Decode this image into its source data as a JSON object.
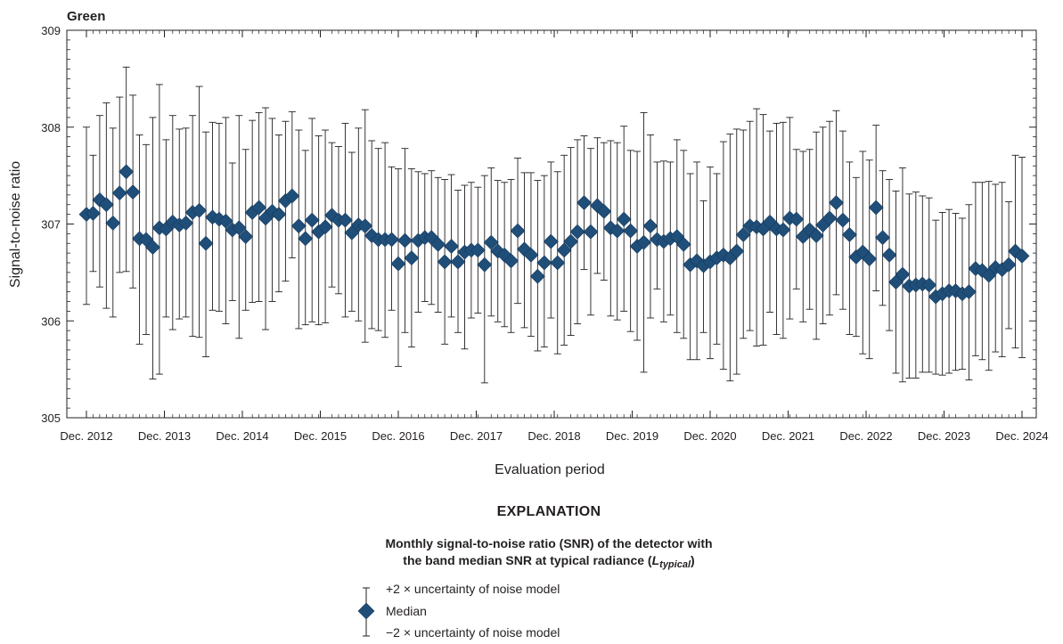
{
  "chart_data": {
    "type": "scatter",
    "title": "Green",
    "xlabel": "Evaluation period",
    "ylabel": "Signal-to-noise ratio",
    "ylim": [
      305,
      309
    ],
    "y_ticks": [
      305,
      306,
      307,
      308,
      309
    ],
    "x_tick_labels": [
      "Dec. 2012",
      "Dec. 2013",
      "Dec. 2014",
      "Dec. 2015",
      "Dec. 2016",
      "Dec. 2017",
      "Dec. 2018",
      "Dec. 2019",
      "Dec. 2020",
      "Dec. 2021",
      "Dec. 2022",
      "Dec. 2023",
      "Dec. 2024"
    ],
    "x_start_label": "Dec. 2012",
    "x_end_label": "Dec. 2024",
    "grid": false,
    "marker_color": "#1f4e79",
    "series": [
      {
        "name": "Median",
        "median": [
          307.1,
          307.11,
          307.25,
          307.2,
          307.01,
          307.32,
          307.54,
          307.33,
          306.85,
          306.84,
          306.76,
          306.96,
          306.95,
          307.02,
          306.99,
          307.01,
          307.12,
          307.14,
          306.8,
          307.07,
          307.05,
          307.03,
          306.94,
          306.96,
          306.87,
          307.12,
          307.17,
          307.06,
          307.13,
          307.1,
          307.24,
          307.29,
          306.98,
          306.85,
          307.04,
          306.92,
          306.97,
          307.09,
          307.04,
          307.04,
          306.91,
          306.99,
          306.98,
          306.88,
          306.84,
          306.84,
          306.84,
          306.59,
          306.83,
          306.65,
          306.83,
          306.86,
          306.86,
          306.79,
          306.61,
          306.77,
          306.61,
          306.71,
          306.73,
          306.73,
          306.58,
          306.81,
          306.72,
          306.68,
          306.62,
          306.93,
          306.74,
          306.68,
          306.46,
          306.6,
          306.82,
          306.6,
          306.73,
          306.82,
          306.92,
          307.22,
          306.92,
          307.19,
          307.13,
          306.96,
          306.93,
          307.05,
          306.93,
          306.77,
          306.81,
          306.98,
          306.84,
          306.82,
          306.85,
          306.87,
          306.79,
          306.58,
          306.62,
          306.57,
          306.61,
          306.65,
          306.68,
          306.65,
          306.72,
          306.89,
          306.98,
          306.97,
          306.95,
          307.02,
          306.95,
          306.94,
          307.06,
          307.05,
          306.87,
          306.94,
          306.88,
          306.99,
          307.06,
          307.22,
          307.04,
          306.89,
          306.66,
          306.71,
          306.64,
          307.17,
          306.86,
          306.68,
          306.4,
          306.48,
          306.36,
          306.37,
          306.38,
          306.37,
          306.25,
          306.28,
          306.31,
          306.31,
          306.28,
          306.3,
          306.54,
          306.52,
          306.47,
          306.55,
          306.53,
          306.58,
          306.72,
          306.67
        ],
        "upper": [
          308.0,
          307.71,
          308.12,
          308.25,
          307.99,
          308.31,
          308.62,
          308.33,
          307.92,
          307.82,
          308.1,
          308.44,
          307.87,
          308.12,
          307.98,
          307.99,
          308.12,
          308.42,
          307.95,
          308.05,
          308.04,
          308.1,
          307.63,
          308.12,
          307.77,
          308.07,
          308.15,
          308.2,
          308.09,
          307.92,
          308.06,
          308.16,
          307.97,
          307.76,
          308.09,
          307.91,
          307.97,
          307.84,
          307.8,
          308.04,
          307.74,
          307.99,
          308.18,
          307.86,
          307.78,
          307.84,
          307.59,
          307.57,
          307.78,
          307.57,
          307.54,
          307.52,
          307.55,
          307.48,
          307.46,
          307.51,
          307.35,
          307.4,
          307.43,
          307.38,
          307.5,
          307.58,
          307.45,
          307.43,
          307.46,
          307.68,
          307.53,
          307.53,
          307.45,
          307.5,
          307.64,
          307.54,
          307.71,
          307.79,
          307.87,
          307.91,
          307.78,
          307.89,
          307.84,
          307.86,
          307.84,
          308.01,
          307.76,
          307.75,
          308.15,
          307.92,
          307.64,
          307.65,
          307.64,
          307.87,
          307.76,
          307.52,
          307.64,
          307.24,
          307.59,
          307.52,
          307.85,
          307.93,
          307.98,
          307.97,
          308.06,
          308.19,
          308.13,
          307.96,
          308.04,
          308.05,
          308.1,
          307.77,
          307.75,
          307.77,
          307.95,
          308.0,
          308.06,
          308.17,
          307.96,
          307.64,
          307.48,
          307.75,
          307.66,
          308.02,
          307.55,
          307.46,
          307.34,
          307.58,
          307.31,
          307.33,
          307.29,
          307.27,
          307.04,
          307.12,
          307.15,
          307.11,
          307.06,
          307.2,
          307.43,
          307.43,
          307.44,
          307.41,
          307.43,
          307.23,
          307.71,
          307.69
        ],
        "lower": [
          306.17,
          306.51,
          306.35,
          306.13,
          306.04,
          306.5,
          306.51,
          306.34,
          305.76,
          305.86,
          305.4,
          305.45,
          306.04,
          305.91,
          306.02,
          306.04,
          305.84,
          305.83,
          305.63,
          306.11,
          306.1,
          305.97,
          306.21,
          305.82,
          306.11,
          306.19,
          306.2,
          305.91,
          306.2,
          306.3,
          306.41,
          306.65,
          305.92,
          305.96,
          305.99,
          305.96,
          305.98,
          306.35,
          306.28,
          306.04,
          306.1,
          306.0,
          305.78,
          305.92,
          305.9,
          305.83,
          306.11,
          305.53,
          305.88,
          305.73,
          306.09,
          306.2,
          306.17,
          306.09,
          305.76,
          306.04,
          305.88,
          305.71,
          306.03,
          306.08,
          305.36,
          306.05,
          305.99,
          305.94,
          305.88,
          306.18,
          305.93,
          305.84,
          305.69,
          305.73,
          306.03,
          305.66,
          305.75,
          305.85,
          305.97,
          306.53,
          306.06,
          306.49,
          306.42,
          306.05,
          306.01,
          306.1,
          305.89,
          305.8,
          305.47,
          306.03,
          306.33,
          305.99,
          306.06,
          305.88,
          305.82,
          305.6,
          305.6,
          305.88,
          305.61,
          305.76,
          305.5,
          305.38,
          305.45,
          305.82,
          305.9,
          305.74,
          305.75,
          306.09,
          305.86,
          305.82,
          306.02,
          306.33,
          305.99,
          306.12,
          305.81,
          305.97,
          306.06,
          306.27,
          306.12,
          305.86,
          305.84,
          305.66,
          305.61,
          306.31,
          306.16,
          305.9,
          305.46,
          305.37,
          305.41,
          305.41,
          305.47,
          305.47,
          305.45,
          305.44,
          305.46,
          305.49,
          305.5,
          305.39,
          305.64,
          305.6,
          305.49,
          305.68,
          305.63,
          305.92,
          305.72,
          305.62
        ]
      }
    ]
  },
  "legend": {
    "heading": "EXPLANATION",
    "caption_line1": "Monthly signal-to-noise ratio (SNR) of the detector with",
    "caption_line2_prefix": "the band median SNR at typical radiance (",
    "caption_L": "L",
    "caption_sub": "typical",
    "caption_suffix": ")",
    "upper_label": "+2 × uncertainty of noise model",
    "median_label": "Median",
    "lower_label": "−2 × uncertainty of noise model"
  }
}
